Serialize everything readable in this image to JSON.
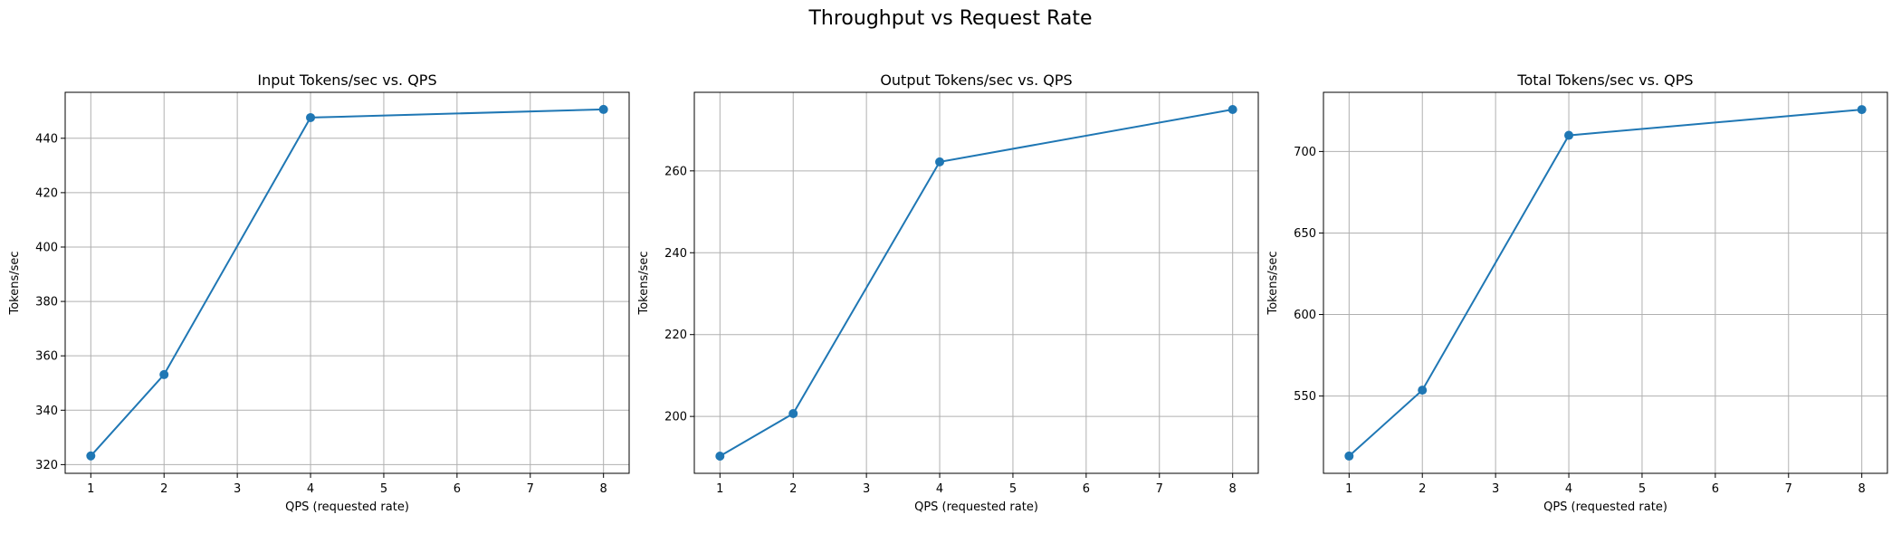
{
  "figure": {
    "title": "Throughput vs Request Rate"
  },
  "colors": {
    "series": "#1f77b4",
    "grid": "#b0b0b0"
  },
  "chart_data": [
    {
      "type": "line",
      "title": "Input Tokens/sec vs. QPS",
      "xlabel": "QPS (requested rate)",
      "ylabel": "Tokens/sec",
      "x": [
        1,
        2,
        4,
        8
      ],
      "y": [
        323.2,
        353.1,
        447.6,
        450.6
      ],
      "xlim": [
        0.65,
        8.35
      ],
      "ylim": [
        316.8,
        456.9
      ],
      "xticks": [
        1,
        2,
        3,
        4,
        5,
        6,
        7,
        8
      ],
      "yticks": [
        320,
        340,
        360,
        380,
        400,
        420,
        440
      ],
      "grid": true,
      "marker": "circle"
    },
    {
      "type": "line",
      "title": "Output Tokens/sec vs. QPS",
      "xlabel": "QPS (requested rate)",
      "ylabel": "Tokens/sec",
      "x": [
        1,
        2,
        4,
        8
      ],
      "y": [
        190.3,
        200.7,
        262.2,
        275.0
      ],
      "xlim": [
        0.65,
        8.35
      ],
      "ylim": [
        186.1,
        279.2
      ],
      "xticks": [
        1,
        2,
        3,
        4,
        5,
        6,
        7,
        8
      ],
      "yticks": [
        200,
        220,
        240,
        260
      ],
      "grid": true,
      "marker": "circle"
    },
    {
      "type": "line",
      "title": "Total Tokens/sec vs. QPS",
      "xlabel": "QPS (requested rate)",
      "ylabel": "Tokens/sec",
      "x": [
        1,
        2,
        4,
        8
      ],
      "y": [
        513.2,
        553.6,
        709.9,
        725.7
      ],
      "xlim": [
        0.65,
        8.35
      ],
      "ylim": [
        502.6,
        736.3
      ],
      "xticks": [
        1,
        2,
        3,
        4,
        5,
        6,
        7,
        8
      ],
      "yticks": [
        550,
        600,
        650,
        700
      ],
      "grid": true,
      "marker": "circle"
    }
  ]
}
